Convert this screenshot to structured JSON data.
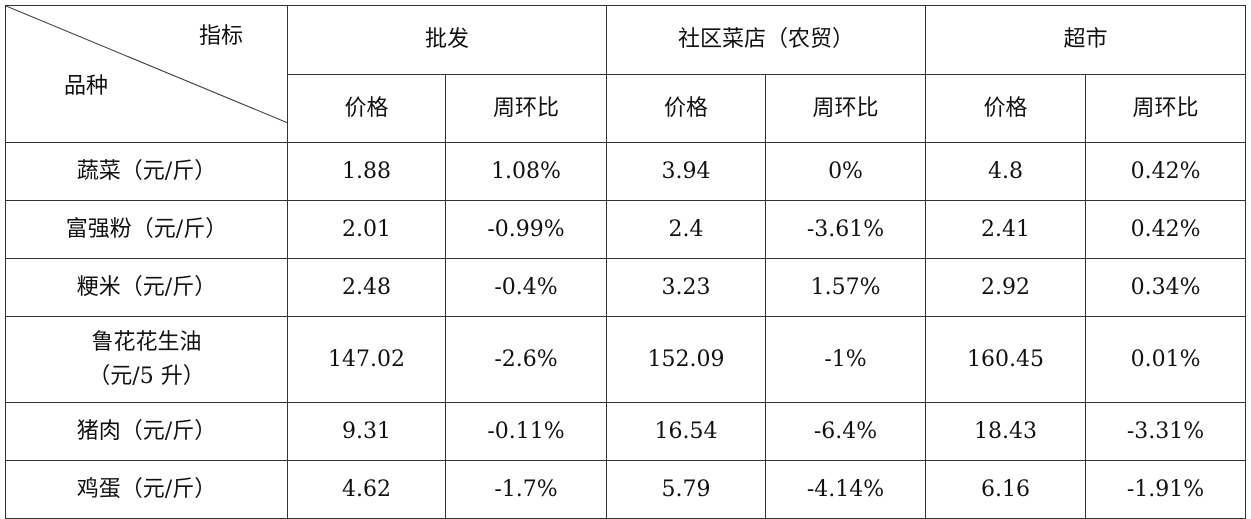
{
  "header": {
    "corner_top": "指标",
    "corner_bottom": "品种",
    "groups": [
      "批发",
      "社区菜店（农贸）",
      "超市"
    ],
    "subheaders": [
      "价格",
      "周环比",
      "价格",
      "周环比",
      "价格",
      "周环比"
    ]
  },
  "table": {
    "rows": [
      [
        "蔬菜（元/斤）",
        "1.88",
        "1.08%",
        "3.94",
        "0%",
        "4.8",
        "0.42%"
      ],
      [
        "富强粉（元/斤）",
        "2.01",
        "-0.99%",
        "2.4",
        "-3.61%",
        "2.41",
        "0.42%"
      ],
      [
        "粳米（元/斤）",
        "2.48",
        "-0.4%",
        "3.23",
        "1.57%",
        "2.92",
        "0.34%"
      ],
      [
        "鲁花花生油\n（元/5 升）",
        "147.02",
        "-2.6%",
        "152.09",
        "-1%",
        "160.45",
        "0.01%"
      ],
      [
        "猪肉（元/斤）",
        "9.31",
        "-0.11%",
        "16.54",
        "-6.4%",
        "18.43",
        "-3.31%"
      ],
      [
        "鸡蛋（元/斤）",
        "4.62",
        "-1.7%",
        "5.79",
        "-4.14%",
        "6.16",
        "-1.91%"
      ]
    ]
  }
}
